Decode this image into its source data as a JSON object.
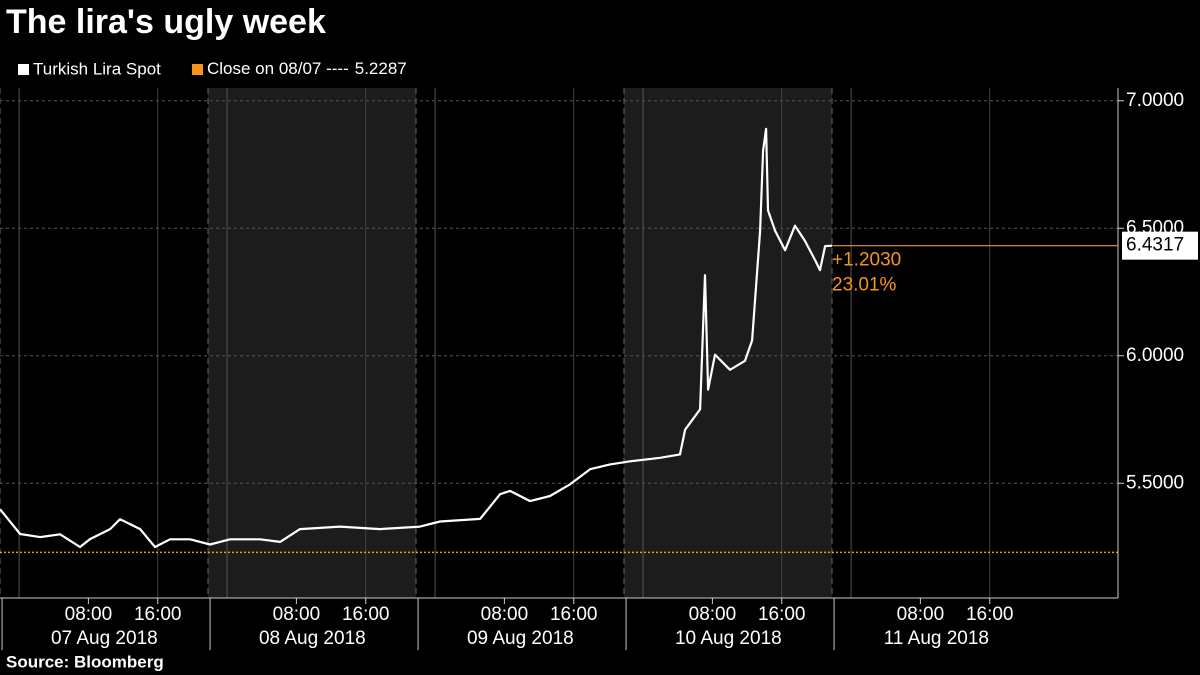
{
  "chart_data": {
    "type": "line",
    "title": "The lira's ugly week",
    "source": "Source: Bloomberg",
    "x": [
      "2018-08-06T21:49",
      "2018-08-06T22:44",
      "2018-08-07T00:07",
      "2018-08-07T02:25",
      "2018-08-07T04:44",
      "2018-08-07T07:02",
      "2018-08-07T08:11",
      "2018-08-07T10:30",
      "2018-08-07T11:39",
      "2018-08-07T13:58",
      "2018-08-07T15:41",
      "2018-08-07T17:25",
      "2018-08-07T19:44",
      "2018-08-07T22:02",
      "2018-08-08T00:21",
      "2018-08-08T03:48",
      "2018-08-08T06:07",
      "2018-08-08T08:25",
      "2018-08-08T13:02",
      "2018-08-08T17:39",
      "2018-08-08T22:16",
      "2018-08-09T00:35",
      "2018-08-09T05:12",
      "2018-08-09T07:30",
      "2018-08-09T08:39",
      "2018-08-09T10:58",
      "2018-08-09T13:16",
      "2018-08-09T15:35",
      "2018-08-09T17:53",
      "2018-08-09T20:11",
      "2018-08-09T22:30",
      "2018-08-10T01:58",
      "2018-08-10T04:16",
      "2018-08-10T04:51",
      "2018-08-10T06:35",
      "2018-08-10T07:09",
      "2018-08-10T07:30",
      "2018-08-10T08:18",
      "2018-08-10T10:02",
      "2018-08-10T11:46",
      "2018-08-10T12:35",
      "2018-08-10T13:30",
      "2018-08-10T13:51",
      "2018-08-10T14:12",
      "2018-08-10T14:25",
      "2018-08-10T15:14",
      "2018-08-10T16:23",
      "2018-08-10T17:32",
      "2018-08-10T18:41",
      "2018-08-10T19:51",
      "2018-08-10T20:25",
      "2018-08-10T21:00",
      "2018-08-10T21:48"
    ],
    "series": [
      {
        "name": "Turkish Lira Spot",
        "color": "#ffffff",
        "values": [
          5.398,
          5.359,
          5.301,
          5.289,
          5.3,
          5.25,
          5.281,
          5.32,
          5.359,
          5.32,
          5.25,
          5.28,
          5.28,
          5.26,
          5.28,
          5.28,
          5.27,
          5.32,
          5.33,
          5.32,
          5.33,
          5.35,
          5.36,
          5.457,
          5.47,
          5.43,
          5.45,
          5.496,
          5.555,
          5.574,
          5.586,
          5.6,
          5.613,
          5.71,
          5.79,
          6.316,
          5.867,
          6.004,
          5.945,
          5.98,
          6.06,
          6.49,
          6.805,
          6.89,
          6.57,
          6.49,
          6.414,
          6.51,
          6.45,
          6.375,
          6.336,
          6.43,
          6.4317
        ]
      }
    ],
    "reference": {
      "label": "Close on 08/07 ----",
      "value": 5.2287,
      "color": "#f7941d"
    },
    "annotations": [
      "+1.2030",
      "23.01%"
    ],
    "xlim": [
      "2018-08-06T21:48",
      "2018-08-12T06:48"
    ],
    "xticks": [
      {
        "value": "2018-08-07T08:00",
        "label": "08:00"
      },
      {
        "value": "2018-08-07T16:00",
        "label": "16:00"
      },
      {
        "value": "2018-08-08T08:00",
        "label": "08:00"
      },
      {
        "value": "2018-08-08T16:00",
        "label": "16:00"
      },
      {
        "value": "2018-08-09T08:00",
        "label": "08:00"
      },
      {
        "value": "2018-08-09T16:00",
        "label": "16:00"
      },
      {
        "value": "2018-08-10T08:00",
        "label": "08:00"
      },
      {
        "value": "2018-08-10T16:00",
        "label": "16:00"
      },
      {
        "value": "2018-08-11T08:00",
        "label": "08:00"
      },
      {
        "value": "2018-08-11T16:00",
        "label": "16:00"
      }
    ],
    "xticks_major": [
      {
        "value": "2018-08-07T00:00",
        "label": "07 Aug 2018"
      },
      {
        "value": "2018-08-08T00:00",
        "label": "08 Aug 2018"
      },
      {
        "value": "2018-08-09T00:00",
        "label": "09 Aug 2018"
      },
      {
        "value": "2018-08-10T00:00",
        "label": "10 Aug 2018"
      },
      {
        "value": "2018-08-11T00:00",
        "label": "11 Aug 2018"
      }
    ],
    "sessions": [
      "2018-08-06T21:48",
      "2018-08-07T21:48",
      "2018-08-08T21:48",
      "2018-08-09T21:48",
      "2018-08-10T21:48"
    ],
    "ylim": [
      5.05,
      7.05
    ],
    "yticks": [
      {
        "value": 5.5,
        "label": "5.5000"
      },
      {
        "value": 6,
        "label": "6.0000"
      },
      {
        "value": 6.5,
        "label": "6.5000"
      },
      {
        "value": 7,
        "label": "7.0000"
      }
    ],
    "grid": true
  }
}
